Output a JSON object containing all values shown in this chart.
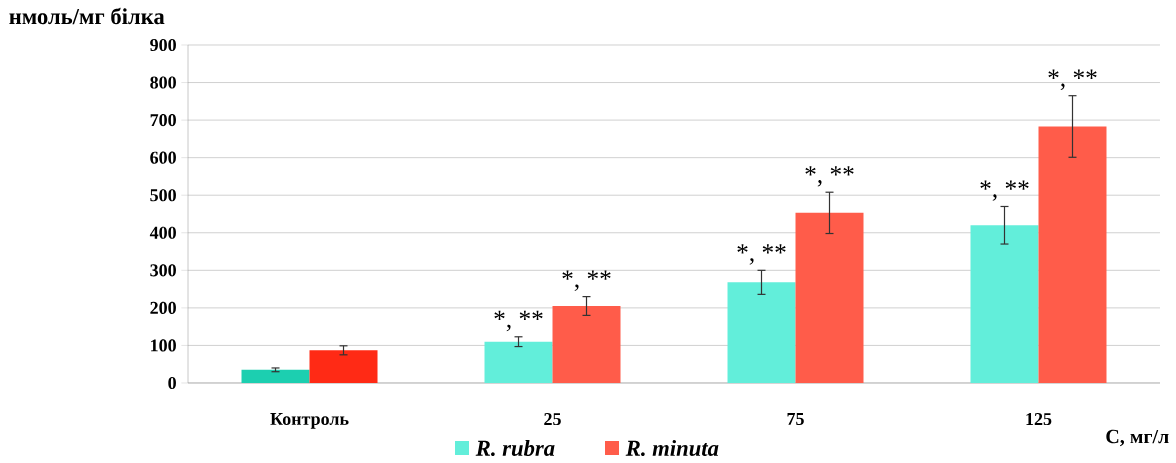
{
  "chart_data": {
    "type": "bar",
    "ylabel": "нмоль/мг білка",
    "xlabel": "С, мг/л",
    "categories": [
      "Контроль",
      "25",
      "75",
      "125"
    ],
    "series": [
      {
        "name": "R. rubra",
        "color": "#62eeda",
        "colors": [
          "#1ccfb0",
          "#62eeda",
          "#62eeda",
          "#62eeda"
        ],
        "values": [
          35,
          110,
          268,
          420
        ],
        "errors": [
          5,
          13,
          32,
          50
        ]
      },
      {
        "name": "R. minuta",
        "color": "#ff5c4a",
        "colors": [
          "#ff2a15",
          "#ff5c4a",
          "#ff5c4a",
          "#ff5c4a"
        ],
        "values": [
          87,
          205,
          453,
          683
        ],
        "errors": [
          12,
          25,
          55,
          82
        ]
      }
    ],
    "ylim": [
      0,
      900
    ],
    "yticks": [
      0,
      100,
      200,
      300,
      400,
      500,
      600,
      700,
      800,
      900
    ],
    "grid": "y",
    "legend": "bottom",
    "annotations": [
      {
        "text": "*, **",
        "x": "25",
        "y": 110
      },
      {
        "text": "*, **",
        "x": "25",
        "y": 205
      },
      {
        "text": "*, **",
        "x": "75",
        "y": 268
      },
      {
        "text": "*, **",
        "x": "75",
        "y": 453
      },
      {
        "text": "*, **",
        "x": "125",
        "y": 420
      },
      {
        "text": "*, **",
        "x": "125",
        "y": 683
      }
    ]
  }
}
